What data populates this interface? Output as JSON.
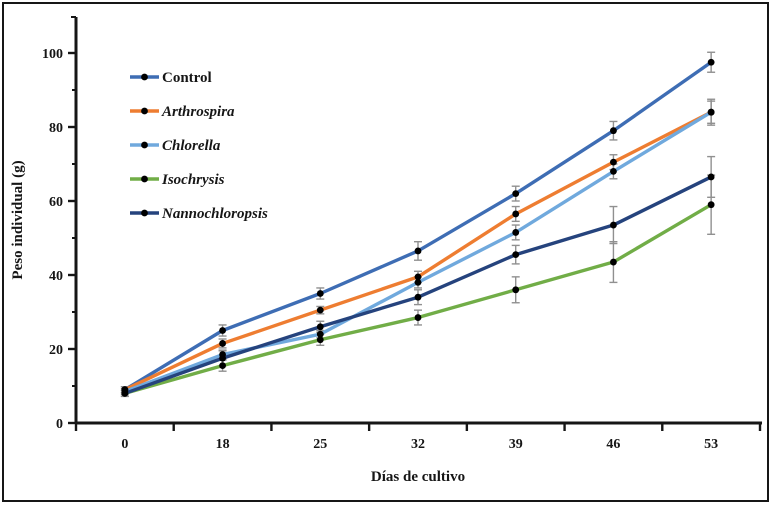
{
  "figure": {
    "background": "#ffffff",
    "border_color": "#161616",
    "axis_color": "#161616"
  },
  "chart_data": {
    "type": "line",
    "title": "",
    "xlabel": "Días de cultivo",
    "ylabel": "Peso individual (g)",
    "x_categories": [
      "0",
      "18",
      "25",
      "32",
      "39",
      "46",
      "53"
    ],
    "y_ticks": [
      0,
      20,
      40,
      60,
      80,
      100
    ],
    "y_minor_ticks": [
      10,
      30,
      50,
      70,
      90
    ],
    "ylim": [
      0,
      110
    ],
    "grid": false,
    "legend_position": "upper-left-inside",
    "marker_color": "#000000",
    "error_bar_color": "#909090",
    "series": [
      {
        "name": "Control",
        "italic": false,
        "color": "#3e6db4",
        "values": [
          9,
          25,
          35,
          46.5,
          62,
          79,
          97.5
        ],
        "errors": [
          0.8,
          1.5,
          1.5,
          2.5,
          2,
          2.5,
          2.7
        ]
      },
      {
        "name": "Arthrospira",
        "italic": true,
        "color": "#ee7d31",
        "values": [
          9,
          21.5,
          30.5,
          39.5,
          56.5,
          70.5,
          84
        ],
        "errors": [
          0.8,
          1.2,
          1,
          1.5,
          2,
          2,
          3
        ]
      },
      {
        "name": "Chlorella",
        "italic": true,
        "color": "#70a9dd",
        "values": [
          8.5,
          18.5,
          24,
          38,
          51.5,
          68,
          84
        ],
        "errors": [
          0.8,
          1.2,
          1,
          1.5,
          2,
          2,
          3.5
        ]
      },
      {
        "name": "Isochrysis",
        "italic": true,
        "color": "#71ad47",
        "values": [
          8,
          15.5,
          22.5,
          28.5,
          36,
          43.5,
          59
        ],
        "errors": [
          0.8,
          1.5,
          1.5,
          2,
          3.5,
          5.5,
          8
        ]
      },
      {
        "name": "Nannochloropsis",
        "italic": true,
        "color": "#25437d",
        "values": [
          8,
          17.5,
          26,
          34,
          45.5,
          53.5,
          66.5
        ],
        "errors": [
          0.8,
          2,
          1.5,
          2,
          2.5,
          5,
          5.5
        ]
      }
    ]
  }
}
